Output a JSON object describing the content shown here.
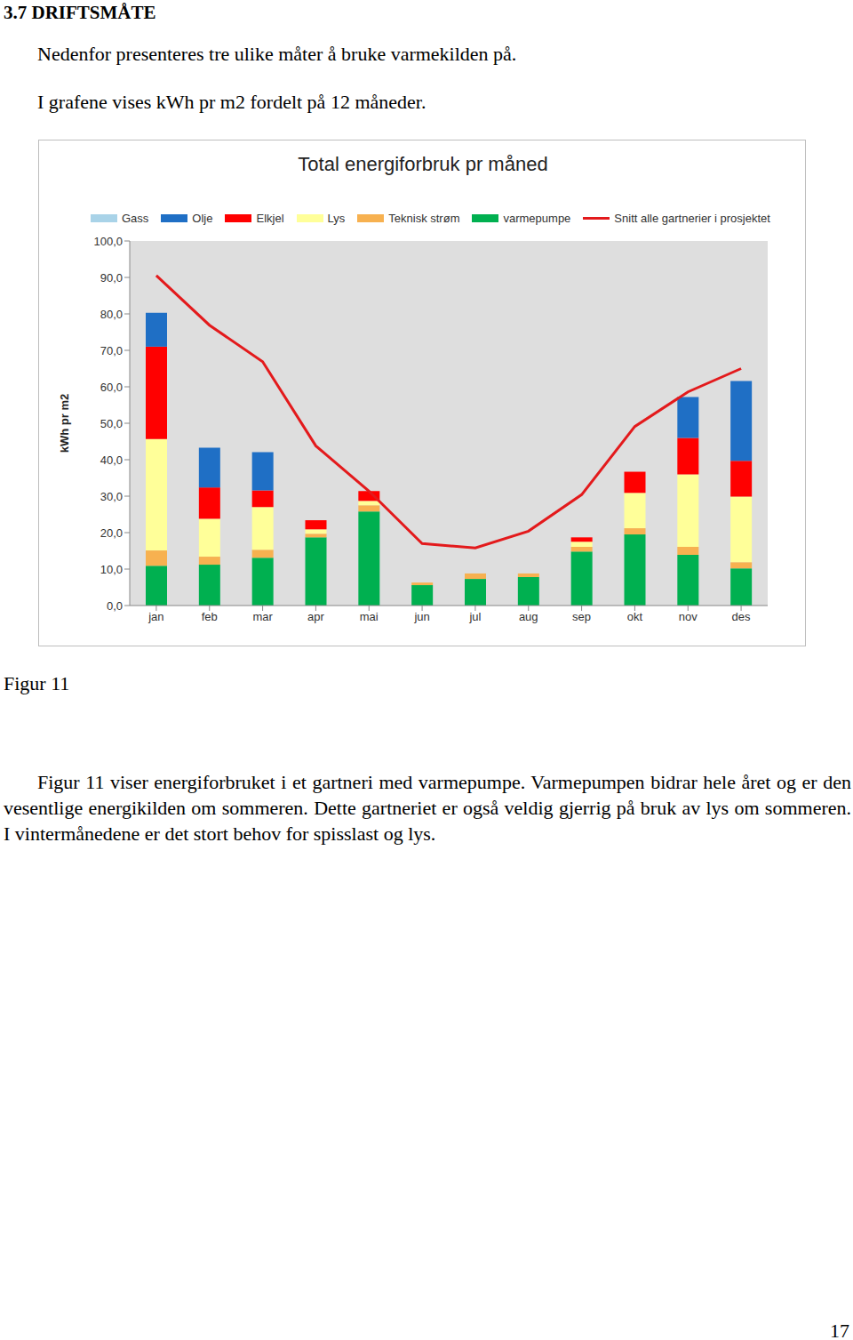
{
  "heading": "3.7 DRIFTSMÅTE",
  "paragraphs": [
    "Nedenfor presenteres tre ulike måter å bruke varmekilden på.",
    "I grafene vises kWh pr m2 fordelt på 12 måneder."
  ],
  "chart_data": {
    "type": "bar",
    "stacked": true,
    "title": "Total energiforbruk pr måned",
    "y_label": "kWh pr m2",
    "categories": [
      "jan",
      "feb",
      "mar",
      "apr",
      "mai",
      "jun",
      "jul",
      "aug",
      "sep",
      "okt",
      "nov",
      "des"
    ],
    "series": [
      {
        "name": "Gass",
        "color": "#a9d3e8",
        "values": [
          0,
          0,
          0,
          0,
          0,
          0,
          0,
          0,
          0,
          0,
          0,
          0
        ]
      },
      {
        "name": "Olje",
        "color": "#1f6fc5",
        "values": [
          9.3,
          10.9,
          10.5,
          0,
          0,
          0,
          0,
          0,
          0,
          0,
          11.2,
          21.9
        ]
      },
      {
        "name": "Elkjel",
        "color": "#ff0000",
        "values": [
          25.3,
          8.6,
          4.6,
          2.5,
          2.7,
          0,
          0,
          0,
          1.2,
          5.8,
          10.0,
          9.8
        ]
      },
      {
        "name": "Lys",
        "color": "#ffff99",
        "values": [
          30.6,
          10.4,
          11.7,
          1.2,
          1.2,
          0,
          0,
          0,
          1.4,
          9.7,
          19.9,
          18.0
        ]
      },
      {
        "name": "Teknisk strøm",
        "color": "#f7b150",
        "values": [
          4.2,
          2.2,
          2.2,
          1.0,
          1.7,
          0.7,
          1.5,
          1.0,
          1.3,
          1.7,
          2.2,
          1.7
        ]
      },
      {
        "name": "varmepumpe",
        "color": "#00b050",
        "values": [
          10.9,
          11.2,
          13.1,
          18.7,
          25.8,
          5.6,
          7.3,
          7.8,
          14.8,
          19.5,
          13.9,
          10.2
        ]
      },
      {
        "name": "Snitt alle gartnerier i prosjektet",
        "type": "line",
        "color": "#e31a1c",
        "values": [
          90.5,
          76.9,
          66.9,
          43.8,
          31.4,
          17.0,
          15.8,
          20.4,
          30.4,
          49.1,
          58.6,
          65.0
        ]
      }
    ],
    "ylim": [
      0,
      100
    ],
    "yticks": [
      {
        "value": 0,
        "label": "0,0"
      },
      {
        "value": 10,
        "label": "10,0"
      },
      {
        "value": 20,
        "label": "20,0"
      },
      {
        "value": 30,
        "label": "30,0"
      },
      {
        "value": 40,
        "label": "40,0"
      },
      {
        "value": 50,
        "label": "50,0"
      },
      {
        "value": 60,
        "label": "60,0"
      },
      {
        "value": 70,
        "label": "70,0"
      },
      {
        "value": 80,
        "label": "80,0"
      },
      {
        "value": 90,
        "label": "90,0"
      },
      {
        "value": 100,
        "label": "100,0"
      }
    ],
    "grid": false
  },
  "figure_label": "Figur 11",
  "caption": "Figur 11 viser energiforbruket i et gartneri med varmepumpe. Varmepumpen bidrar hele året og er den vesentlige energikilden om sommeren. Dette gartneriet er også veldig gjerrig på bruk av lys om sommeren. I vintermånedene er det stort behov for spisslast og lys.",
  "page_number": 17
}
